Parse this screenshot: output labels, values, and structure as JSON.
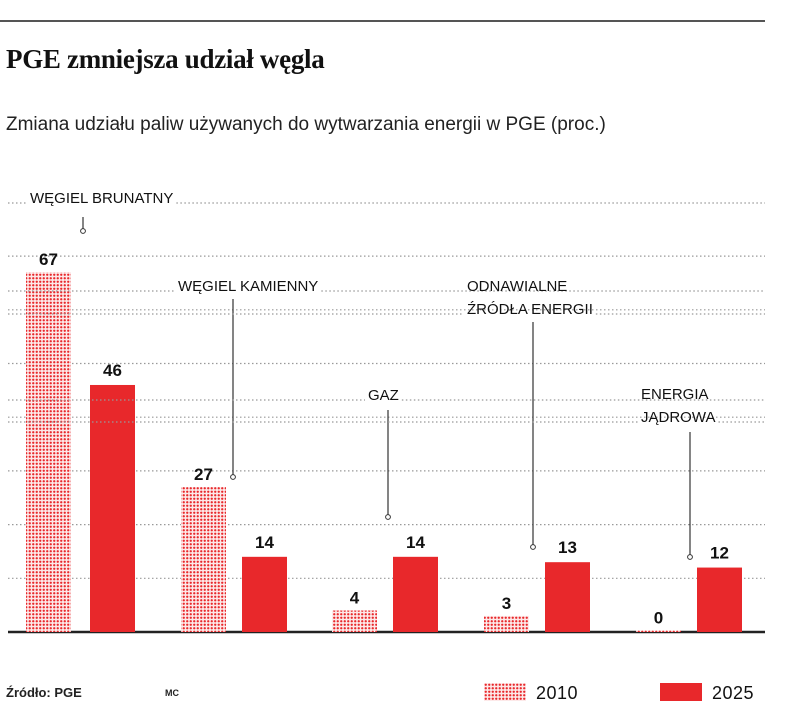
{
  "title": "PGE zmniejsza udział węgla",
  "subtitle": "Zmiana udziału paliw używanych do wytwarzania energii w PGE (proc.)",
  "source": "Źródło: PGE",
  "author": "MC",
  "colors": {
    "series_2010": "#e8282b",
    "series_2025": "#e8282b",
    "axis": "#222222",
    "grid": "#999999",
    "leader": "#333333"
  },
  "chart_data": {
    "type": "bar",
    "title": "PGE zmniejsza udział węgla",
    "ylabel": "proc.",
    "ylim": [
      0,
      70
    ],
    "grid": true,
    "legend_position": "bottom-right",
    "categories": [
      {
        "label": [
          "WĘGIEL BRUNATNY"
        ]
      },
      {
        "label": [
          "WĘGIEL KAMIENNY"
        ]
      },
      {
        "label": [
          "GAZ"
        ]
      },
      {
        "label": [
          "ODNAWIALNE",
          "ŹRÓDŁA ENERGII"
        ]
      },
      {
        "label": [
          "ENERGIA",
          "JĄDROWA"
        ]
      }
    ],
    "series": [
      {
        "name": "2010",
        "style": "dotted",
        "values": [
          67,
          27,
          4,
          3,
          0
        ]
      },
      {
        "name": "2025",
        "style": "solid",
        "values": [
          46,
          14,
          14,
          13,
          12
        ]
      }
    ]
  }
}
